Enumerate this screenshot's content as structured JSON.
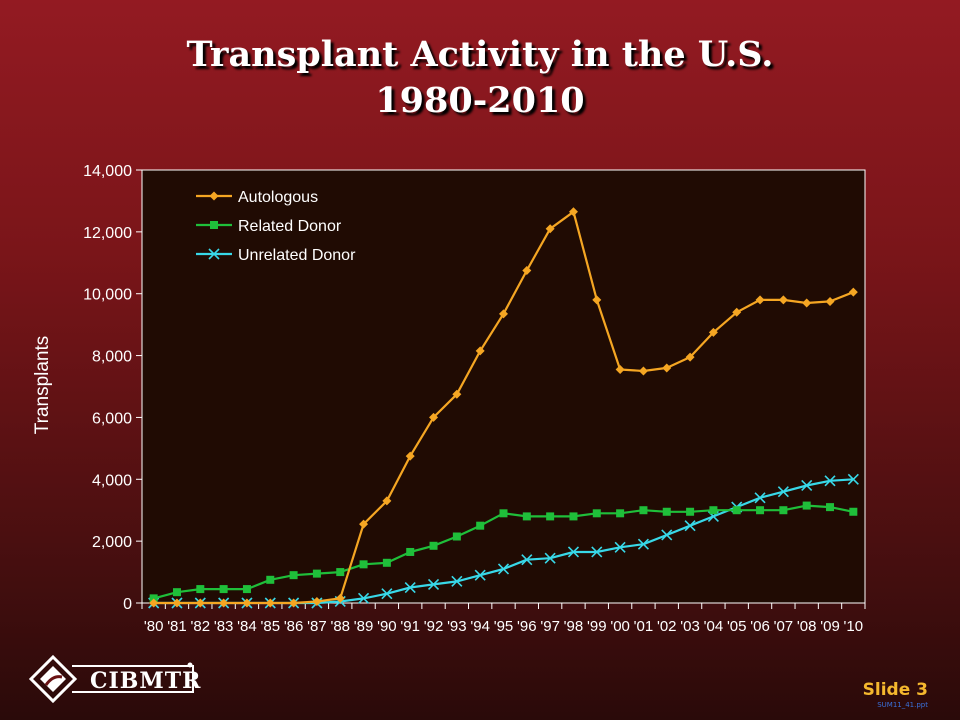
{
  "slide": {
    "title_line1": "Transplant Activity in the U.S.",
    "title_line2": "1980-2010",
    "slide_label": "Slide 3",
    "file_code": "SUM11_41.ppt",
    "logo_text": "CIBMTR"
  },
  "chart_data": {
    "type": "line",
    "title": "Transplant Activity in the U.S. 1980-2010",
    "xlabel": "",
    "ylabel": "Transplants",
    "ylim": [
      0,
      14000
    ],
    "yticks": [
      0,
      2000,
      4000,
      6000,
      8000,
      10000,
      12000,
      14000
    ],
    "ytick_labels": [
      "0",
      "2,000",
      "4,000",
      "6,000",
      "8,000",
      "10,000",
      "12,000",
      "14,000"
    ],
    "categories": [
      "'80",
      "'81",
      "'82",
      "'83",
      "'84",
      "'85",
      "'86",
      "'87",
      "'88",
      "'89",
      "'90",
      "'91",
      "'92",
      "'93",
      "'94",
      "'95",
      "'96",
      "'97",
      "'98",
      "'99",
      "'00",
      "'01",
      "'02",
      "'03",
      "'04",
      "'05",
      "'06",
      "'07",
      "'08",
      "'09",
      "'10"
    ],
    "legend_position": "top-left",
    "grid": false,
    "plot_background": "#200b03",
    "series": [
      {
        "name": "Autologous",
        "color": "#f5a623",
        "marker": "diamond",
        "values": [
          0,
          0,
          0,
          0,
          0,
          0,
          0,
          50,
          150,
          2550,
          3300,
          4750,
          6000,
          6750,
          8150,
          9350,
          10750,
          12100,
          12650,
          9800,
          7550,
          7500,
          7600,
          7950,
          8750,
          9400,
          9800,
          9800,
          9700,
          9750,
          10050
        ]
      },
      {
        "name": "Related Donor",
        "color": "#1fbf3a",
        "marker": "square",
        "values": [
          150,
          350,
          450,
          450,
          450,
          750,
          900,
          950,
          1000,
          1250,
          1300,
          1650,
          1850,
          2150,
          2500,
          2900,
          2800,
          2800,
          2800,
          2900,
          2900,
          3000,
          2950,
          2950,
          3000,
          3000,
          3000,
          3000,
          3150,
          3100,
          2950
        ]
      },
      {
        "name": "Unrelated Donor",
        "color": "#38d8e8",
        "marker": "x",
        "values": [
          0,
          0,
          0,
          0,
          0,
          0,
          0,
          0,
          50,
          150,
          300,
          500,
          600,
          700,
          900,
          1100,
          1400,
          1450,
          1650,
          1650,
          1800,
          1900,
          2200,
          2500,
          2800,
          3100,
          3400,
          3600,
          3800,
          3950,
          4000
        ]
      }
    ]
  }
}
